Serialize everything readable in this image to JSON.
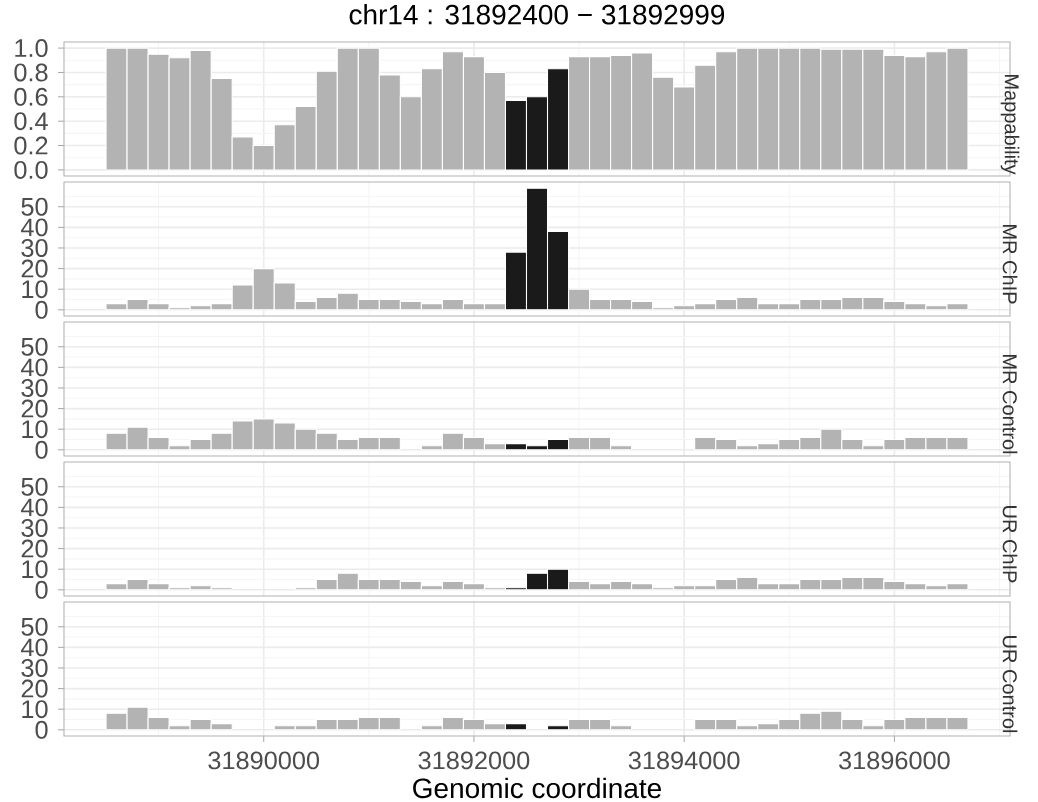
{
  "chart_data": [
    {
      "type": "bar",
      "title": "chr14 : 31892400 − 31892999",
      "ylabel": "Mappability",
      "x": [
        31888600,
        31888800,
        31889000,
        31889200,
        31889400,
        31889600,
        31889800,
        31890000,
        31890200,
        31890400,
        31890600,
        31890800,
        31891000,
        31891200,
        31891400,
        31891600,
        31891800,
        31892000,
        31892200,
        31892400,
        31892600,
        31892800,
        31893000,
        31893200,
        31893400,
        31893600,
        31893800,
        31894000,
        31894200,
        31894400,
        31894600,
        31894800,
        31895000,
        31895200,
        31895400,
        31895600,
        31895800,
        31896000,
        31896200,
        31896400,
        31896600
      ],
      "values": [
        1.0,
        1.0,
        0.95,
        0.92,
        0.98,
        0.75,
        0.27,
        0.2,
        0.37,
        0.52,
        0.81,
        1.0,
        1.0,
        0.78,
        0.6,
        0.83,
        0.97,
        0.93,
        0.8,
        0.57,
        0.6,
        0.83,
        0.93,
        0.93,
        0.94,
        0.96,
        0.76,
        0.68,
        0.86,
        0.97,
        1.0,
        1.0,
        1.0,
        1.0,
        0.99,
        0.99,
        0.99,
        0.94,
        0.93,
        0.97,
        1.0
      ],
      "colors": [
        "#b3b3b3",
        "#b3b3b3",
        "#b3b3b3",
        "#b3b3b3",
        "#b3b3b3",
        "#b3b3b3",
        "#b3b3b3",
        "#b3b3b3",
        "#b3b3b3",
        "#b3b3b3",
        "#b3b3b3",
        "#b3b3b3",
        "#b3b3b3",
        "#b3b3b3",
        "#b3b3b3",
        "#b3b3b3",
        "#b3b3b3",
        "#b3b3b3",
        "#b3b3b3",
        "#1a1a1a",
        "#1a1a1a",
        "#1a1a1a",
        "#b3b3b3",
        "#b3b3b3",
        "#b3b3b3",
        "#b3b3b3",
        "#b3b3b3",
        "#b3b3b3",
        "#b3b3b3",
        "#b3b3b3",
        "#b3b3b3",
        "#b3b3b3",
        "#b3b3b3",
        "#b3b3b3",
        "#b3b3b3",
        "#b3b3b3",
        "#b3b3b3",
        "#b3b3b3",
        "#b3b3b3",
        "#b3b3b3",
        "#b3b3b3"
      ],
      "xlim": [
        31888100,
        31897100
      ],
      "xticks": [
        31890000,
        31892000,
        31894000,
        31896000
      ],
      "ylim": [
        -0.05,
        1.05
      ],
      "yticks": [
        {
          "value": 0,
          "label": "0.0"
        },
        {
          "value": 0.2,
          "label": "0.2"
        },
        {
          "value": 0.4,
          "label": "0.4"
        },
        {
          "value": 0.6,
          "label": "0.6"
        },
        {
          "value": 0.8,
          "label": "0.8"
        },
        {
          "value": 1.0,
          "label": "1.0"
        }
      ],
      "grid": true,
      "tick_labels": "y"
    },
    {
      "type": "bar",
      "ylabel": "MR ChIP",
      "x": [
        31888600,
        31888800,
        31889000,
        31889200,
        31889400,
        31889600,
        31889800,
        31890000,
        31890200,
        31890400,
        31890600,
        31890800,
        31891000,
        31891200,
        31891400,
        31891600,
        31891800,
        31892000,
        31892200,
        31892400,
        31892600,
        31892800,
        31893000,
        31893200,
        31893400,
        31893600,
        31893800,
        31894000,
        31894200,
        31894400,
        31894600,
        31894800,
        31895000,
        31895200,
        31895400,
        31895600,
        31895800,
        31896000,
        31896200,
        31896400,
        31896600
      ],
      "values": [
        3,
        5,
        3,
        1,
        2,
        3,
        12,
        20,
        13,
        4,
        6,
        8,
        5,
        5,
        4,
        3,
        5,
        3,
        3,
        28,
        59,
        38,
        10,
        5,
        5,
        4,
        1,
        2,
        3,
        5,
        6,
        3,
        3,
        5,
        5,
        6,
        6,
        4,
        3,
        2,
        3
      ],
      "colors": [
        "#b3b3b3",
        "#b3b3b3",
        "#b3b3b3",
        "#b3b3b3",
        "#b3b3b3",
        "#b3b3b3",
        "#b3b3b3",
        "#b3b3b3",
        "#b3b3b3",
        "#b3b3b3",
        "#b3b3b3",
        "#b3b3b3",
        "#b3b3b3",
        "#b3b3b3",
        "#b3b3b3",
        "#b3b3b3",
        "#b3b3b3",
        "#b3b3b3",
        "#b3b3b3",
        "#1a1a1a",
        "#1a1a1a",
        "#1a1a1a",
        "#b3b3b3",
        "#b3b3b3",
        "#b3b3b3",
        "#b3b3b3",
        "#b3b3b3",
        "#b3b3b3",
        "#b3b3b3",
        "#b3b3b3",
        "#b3b3b3",
        "#b3b3b3",
        "#b3b3b3",
        "#b3b3b3",
        "#b3b3b3",
        "#b3b3b3",
        "#b3b3b3",
        "#b3b3b3",
        "#b3b3b3",
        "#b3b3b3",
        "#b3b3b3"
      ],
      "xlim": [
        31888100,
        31897100
      ],
      "xticks": [
        31890000,
        31892000,
        31894000,
        31896000
      ],
      "ylim": [
        -3,
        62
      ],
      "yticks": [
        0,
        10,
        20,
        30,
        40,
        50
      ],
      "grid": true,
      "tick_labels": "y"
    },
    {
      "type": "bar",
      "ylabel": "MR Control",
      "x": [
        31888600,
        31888800,
        31889000,
        31889200,
        31889400,
        31889600,
        31889800,
        31890000,
        31890200,
        31890400,
        31890600,
        31890800,
        31891000,
        31891200,
        31891400,
        31891600,
        31891800,
        31892000,
        31892200,
        31892400,
        31892600,
        31892800,
        31893000,
        31893200,
        31893400,
        31893600,
        31893800,
        31894000,
        31894200,
        31894400,
        31894600,
        31894800,
        31895000,
        31895200,
        31895400,
        31895600,
        31895800,
        31896000,
        31896200,
        31896400,
        31896600
      ],
      "values": [
        8,
        11,
        6,
        2,
        5,
        8,
        14,
        15,
        13,
        10,
        8,
        5,
        6,
        6,
        0,
        2,
        8,
        6,
        3,
        3,
        2,
        5,
        6,
        6,
        2,
        0,
        0,
        0,
        6,
        5,
        2,
        3,
        5,
        6,
        10,
        5,
        2,
        5,
        6,
        6,
        6
      ],
      "colors": [
        "#b3b3b3",
        "#b3b3b3",
        "#b3b3b3",
        "#b3b3b3",
        "#b3b3b3",
        "#b3b3b3",
        "#b3b3b3",
        "#b3b3b3",
        "#b3b3b3",
        "#b3b3b3",
        "#b3b3b3",
        "#b3b3b3",
        "#b3b3b3",
        "#b3b3b3",
        "#b3b3b3",
        "#b3b3b3",
        "#b3b3b3",
        "#b3b3b3",
        "#b3b3b3",
        "#1a1a1a",
        "#1a1a1a",
        "#1a1a1a",
        "#b3b3b3",
        "#b3b3b3",
        "#b3b3b3",
        "#b3b3b3",
        "#b3b3b3",
        "#b3b3b3",
        "#b3b3b3",
        "#b3b3b3",
        "#b3b3b3",
        "#b3b3b3",
        "#b3b3b3",
        "#b3b3b3",
        "#b3b3b3",
        "#b3b3b3",
        "#b3b3b3",
        "#b3b3b3",
        "#b3b3b3",
        "#b3b3b3",
        "#b3b3b3"
      ],
      "xlim": [
        31888100,
        31897100
      ],
      "xticks": [
        31890000,
        31892000,
        31894000,
        31896000
      ],
      "ylim": [
        -3,
        62
      ],
      "yticks": [
        0,
        10,
        20,
        30,
        40,
        50
      ],
      "grid": true,
      "tick_labels": "y"
    },
    {
      "type": "bar",
      "ylabel": "UR ChIP",
      "x": [
        31888600,
        31888800,
        31889000,
        31889200,
        31889400,
        31889600,
        31889800,
        31890000,
        31890200,
        31890400,
        31890600,
        31890800,
        31891000,
        31891200,
        31891400,
        31891600,
        31891800,
        31892000,
        31892200,
        31892400,
        31892600,
        31892800,
        31893000,
        31893200,
        31893400,
        31893600,
        31893800,
        31894000,
        31894200,
        31894400,
        31894600,
        31894800,
        31895000,
        31895200,
        31895400,
        31895600,
        31895800,
        31896000,
        31896200,
        31896400,
        31896600
      ],
      "values": [
        3,
        5,
        3,
        1,
        2,
        1,
        0,
        0,
        0,
        1,
        5,
        8,
        5,
        5,
        4,
        2,
        4,
        3,
        1,
        1,
        8,
        10,
        4,
        3,
        4,
        3,
        1,
        2,
        2,
        5,
        6,
        3,
        3,
        5,
        5,
        6,
        6,
        4,
        3,
        2,
        3
      ],
      "colors": [
        "#b3b3b3",
        "#b3b3b3",
        "#b3b3b3",
        "#b3b3b3",
        "#b3b3b3",
        "#b3b3b3",
        "#b3b3b3",
        "#b3b3b3",
        "#b3b3b3",
        "#b3b3b3",
        "#b3b3b3",
        "#b3b3b3",
        "#b3b3b3",
        "#b3b3b3",
        "#b3b3b3",
        "#b3b3b3",
        "#b3b3b3",
        "#b3b3b3",
        "#b3b3b3",
        "#1a1a1a",
        "#1a1a1a",
        "#1a1a1a",
        "#b3b3b3",
        "#b3b3b3",
        "#b3b3b3",
        "#b3b3b3",
        "#b3b3b3",
        "#b3b3b3",
        "#b3b3b3",
        "#b3b3b3",
        "#b3b3b3",
        "#b3b3b3",
        "#b3b3b3",
        "#b3b3b3",
        "#b3b3b3",
        "#b3b3b3",
        "#b3b3b3",
        "#b3b3b3",
        "#b3b3b3",
        "#b3b3b3",
        "#b3b3b3"
      ],
      "xlim": [
        31888100,
        31897100
      ],
      "xticks": [
        31890000,
        31892000,
        31894000,
        31896000
      ],
      "ylim": [
        -3,
        62
      ],
      "yticks": [
        0,
        10,
        20,
        30,
        40,
        50
      ],
      "grid": true,
      "tick_labels": "y"
    },
    {
      "type": "bar",
      "ylabel": "UR Control",
      "xlabel": "Genomic coordinate",
      "x": [
        31888600,
        31888800,
        31889000,
        31889200,
        31889400,
        31889600,
        31889800,
        31890000,
        31890200,
        31890400,
        31890600,
        31890800,
        31891000,
        31891200,
        31891400,
        31891600,
        31891800,
        31892000,
        31892200,
        31892400,
        31892600,
        31892800,
        31893000,
        31893200,
        31893400,
        31893600,
        31893800,
        31894000,
        31894200,
        31894400,
        31894600,
        31894800,
        31895000,
        31895200,
        31895400,
        31895600,
        31895800,
        31896000,
        31896200,
        31896400,
        31896600
      ],
      "values": [
        8,
        11,
        6,
        2,
        5,
        3,
        0,
        0,
        2,
        2,
        5,
        5,
        6,
        6,
        0,
        2,
        6,
        5,
        3,
        3,
        0,
        2,
        5,
        5,
        2,
        0,
        0,
        0,
        5,
        5,
        2,
        3,
        5,
        8,
        9,
        5,
        2,
        5,
        6,
        6,
        6
      ],
      "colors": [
        "#b3b3b3",
        "#b3b3b3",
        "#b3b3b3",
        "#b3b3b3",
        "#b3b3b3",
        "#b3b3b3",
        "#b3b3b3",
        "#b3b3b3",
        "#b3b3b3",
        "#b3b3b3",
        "#b3b3b3",
        "#b3b3b3",
        "#b3b3b3",
        "#b3b3b3",
        "#b3b3b3",
        "#b3b3b3",
        "#b3b3b3",
        "#b3b3b3",
        "#b3b3b3",
        "#1a1a1a",
        "#1a1a1a",
        "#1a1a1a",
        "#b3b3b3",
        "#b3b3b3",
        "#b3b3b3",
        "#b3b3b3",
        "#b3b3b3",
        "#b3b3b3",
        "#b3b3b3",
        "#b3b3b3",
        "#b3b3b3",
        "#b3b3b3",
        "#b3b3b3",
        "#b3b3b3",
        "#b3b3b3",
        "#b3b3b3",
        "#b3b3b3",
        "#b3b3b3",
        "#b3b3b3",
        "#b3b3b3",
        "#b3b3b3"
      ],
      "xlim": [
        31888100,
        31897100
      ],
      "xticks": [
        31890000,
        31892000,
        31894000,
        31896000
      ],
      "ylim": [
        -3,
        62
      ],
      "yticks": [
        0,
        10,
        20,
        30,
        40,
        50
      ],
      "grid": true
    }
  ]
}
